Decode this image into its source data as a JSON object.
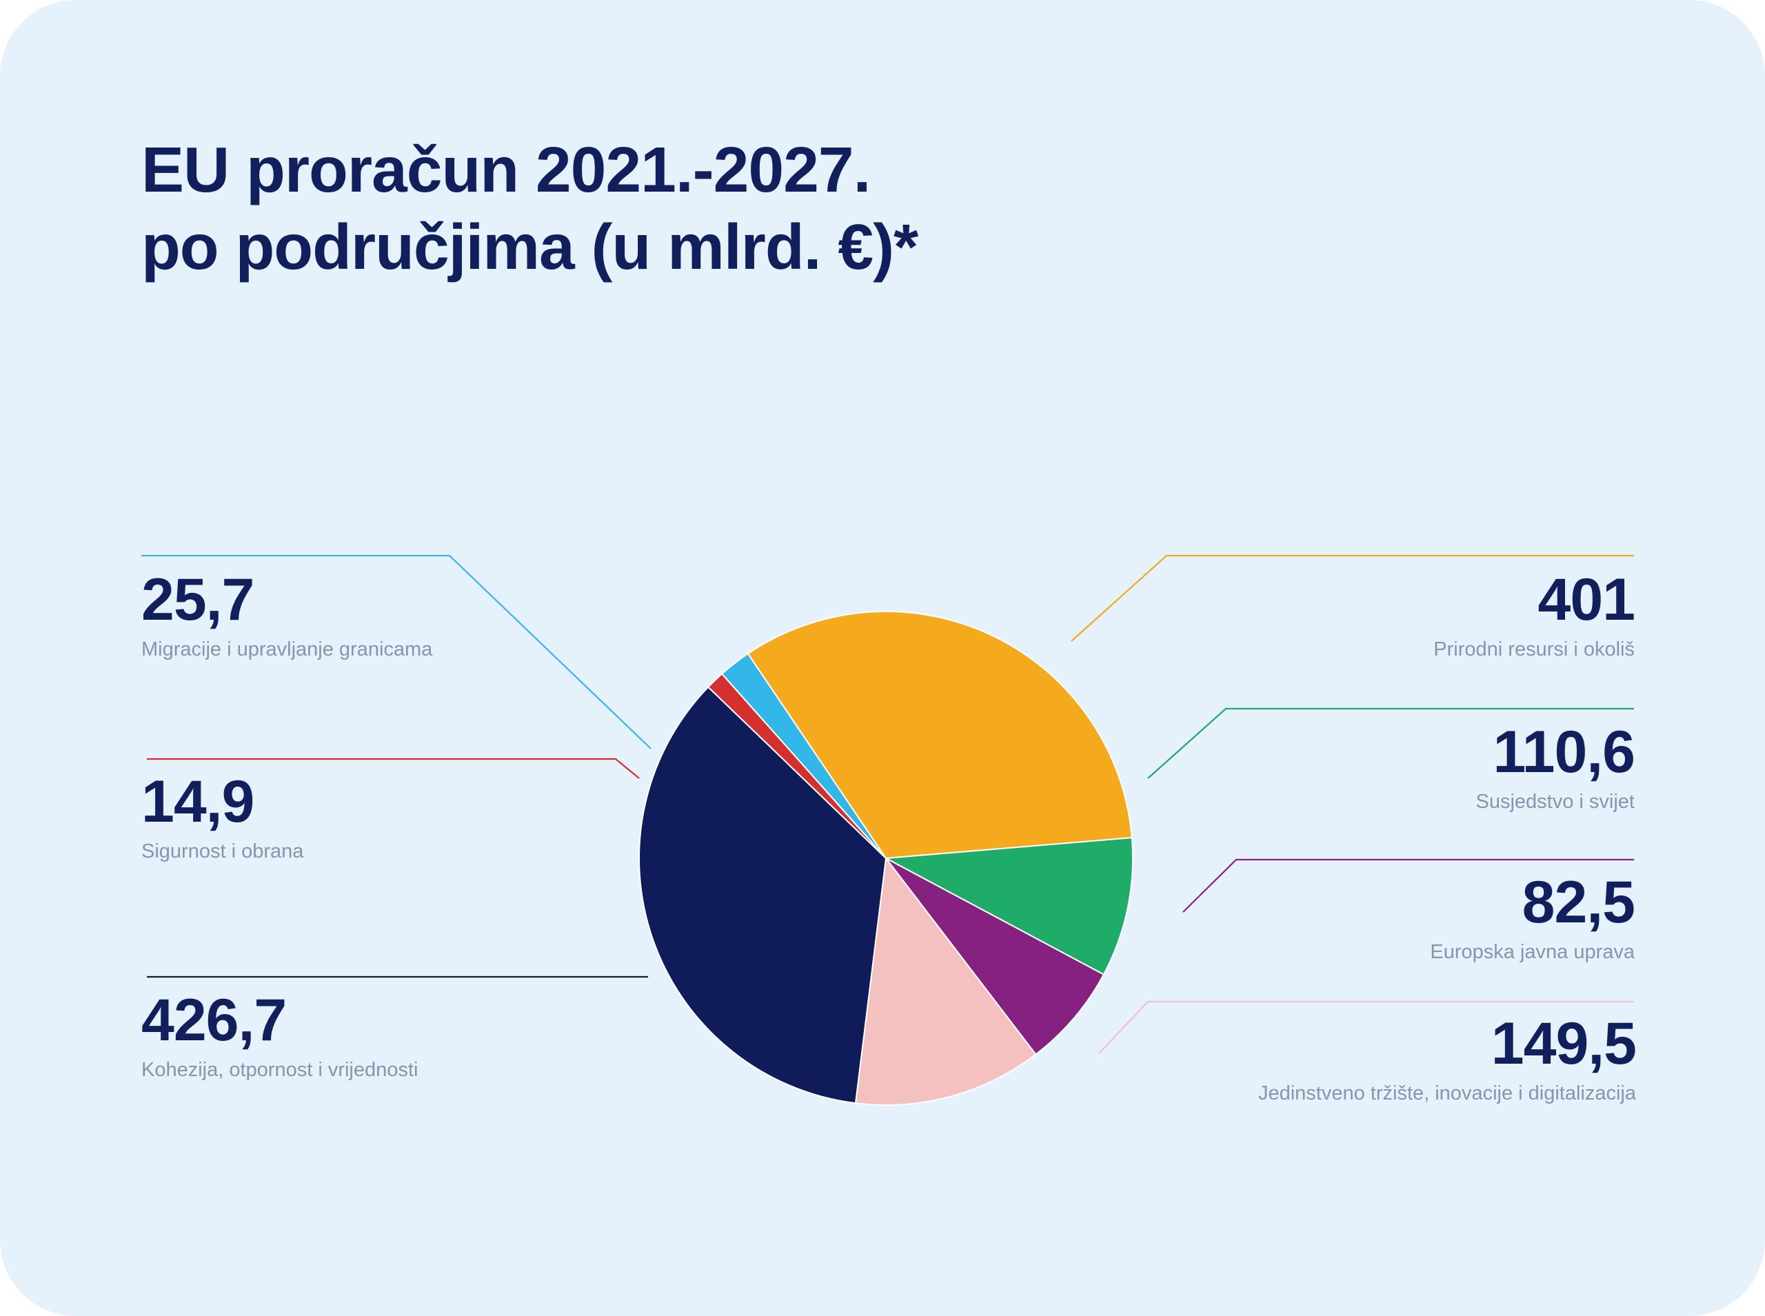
{
  "title_lines": [
    "EU proračun 2021.-2027.",
    "po područjima (u mlrd. €)*"
  ],
  "chart_data": {
    "type": "pie",
    "title": "EU proračun 2021.-2027. po područjima (u mlrd. €)*",
    "slices": [
      {
        "label": "Prirodni resursi i okoliš",
        "value_text": "401",
        "value": 401,
        "color": "#f5a91d"
      },
      {
        "label": "Susjedstvo i svijet",
        "value_text": "110,6",
        "value": 110.6,
        "color": "#1fab68"
      },
      {
        "label": "Europska javna uprava",
        "value_text": "82,5",
        "value": 82.5,
        "color": "#862081"
      },
      {
        "label": "Jedinstveno tržište, inovacije i digitalizacija",
        "value_text": "149,5",
        "value": 149.5,
        "color": "#f4c0c0"
      },
      {
        "label": "Kohezija, otpornost i vrijednosti",
        "value_text": "426,7",
        "value": 426.7,
        "color": "#101b59"
      },
      {
        "label": "Sigurnost i obrana",
        "value_text": "14,9",
        "value": 14.9,
        "color": "#d3302f"
      },
      {
        "label": "Migracije i upravljanje granicama",
        "value_text": "25,7",
        "value": 25.7,
        "color": "#33b6e8"
      }
    ]
  }
}
